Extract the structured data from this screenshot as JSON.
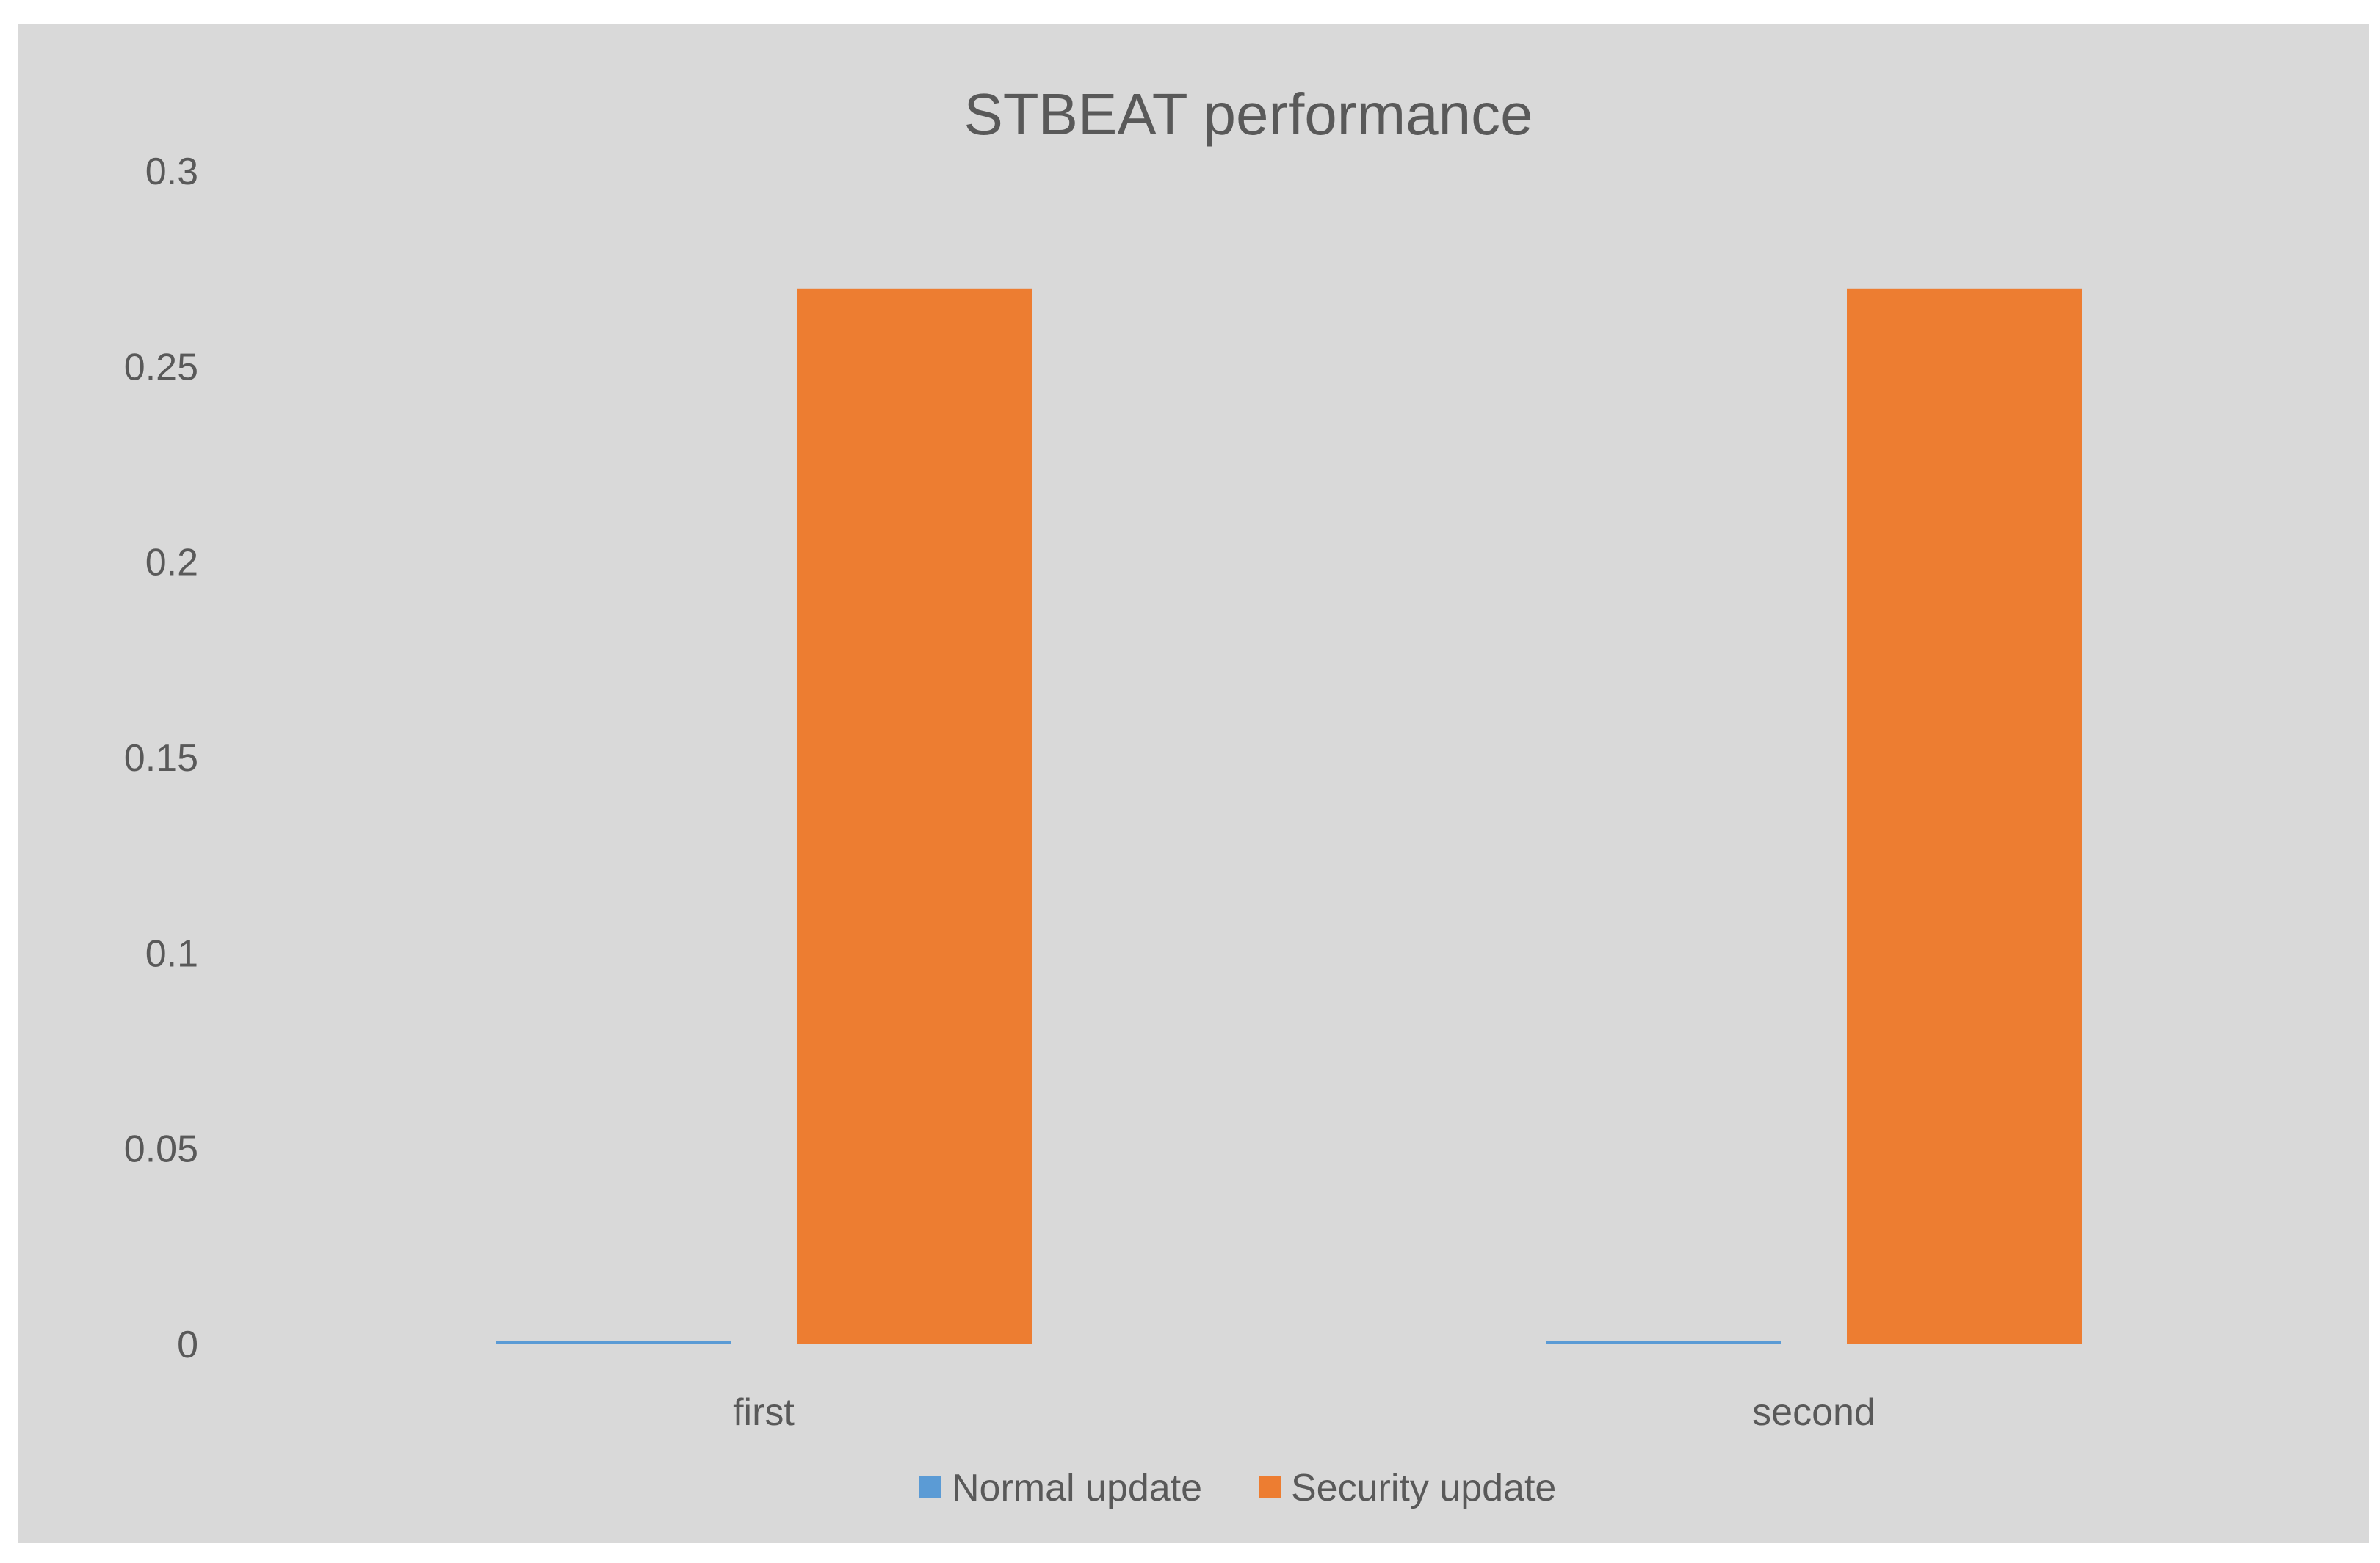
{
  "chart_data": {
    "type": "bar",
    "title": "STBEAT performance",
    "categories": [
      "first",
      "second"
    ],
    "series": [
      {
        "name": "Normal update",
        "color": "#5b9bd5",
        "values": [
          0.0003,
          0.0003
        ]
      },
      {
        "name": "Security update",
        "color": "#ed7d31",
        "values": [
          0.27,
          0.27
        ]
      }
    ],
    "ylim": [
      0,
      0.3
    ],
    "yticks": [
      "0",
      "0.05",
      "0.1",
      "0.15",
      "0.2",
      "0.25",
      "0.3"
    ],
    "ytick_values": [
      0,
      0.05,
      0.1,
      0.15,
      0.2,
      0.25,
      0.3
    ],
    "grid": false,
    "legend": "bottom",
    "xlabel": "",
    "ylabel": ""
  },
  "colors": {
    "background": "#d9d9d9",
    "text": "#595959"
  }
}
